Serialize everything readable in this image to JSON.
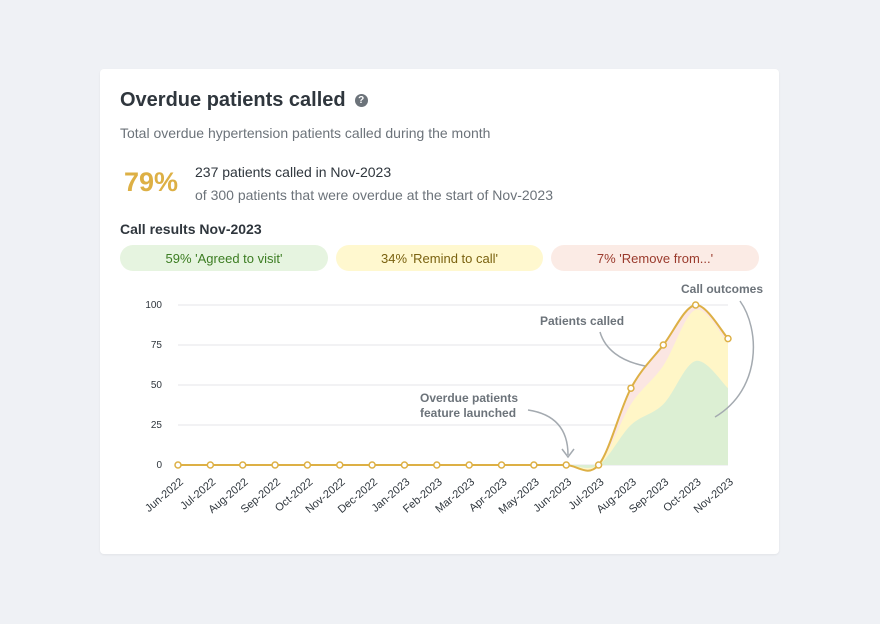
{
  "card": {
    "title": "Overdue patients called",
    "help_icon": "?",
    "subtitle": "Total overdue hypertension patients called during the month",
    "percent": "79%",
    "stat_main": "237 patients called in Nov-2023",
    "stat_sub": "of 300 patients that were overdue at the start of Nov-2023",
    "results_title": "Call results Nov-2023",
    "pills": {
      "agreed": "59% 'Agreed to visit'",
      "remind": "34% 'Remind to call'",
      "remove": "7% 'Remove from...'"
    }
  },
  "colors": {
    "called_line": "#ddb045",
    "agreed_fill": "#dcefd3",
    "remind_fill": "#fff6c7",
    "remove_fill": "#fbe6e2",
    "grid": "#e4e6e9"
  },
  "chart_data": {
    "type": "area",
    "categories": [
      "Jun-2022",
      "Jul-2022",
      "Aug-2022",
      "Sep-2022",
      "Oct-2022",
      "Nov-2022",
      "Dec-2022",
      "Jan-2023",
      "Feb-2023",
      "Mar-2023",
      "Apr-2023",
      "May-2023",
      "Jun-2023",
      "Jul-2023",
      "Aug-2023",
      "Sep-2023",
      "Oct-2023",
      "Nov-2023"
    ],
    "yticks": [
      0,
      25,
      50,
      75,
      100
    ],
    "ylim": [
      0,
      100
    ],
    "series": [
      {
        "name": "Patients called",
        "kind": "line",
        "values": [
          0,
          0,
          0,
          0,
          0,
          0,
          0,
          0,
          0,
          0,
          0,
          0,
          0,
          0,
          48,
          75,
          100,
          79
        ]
      },
      {
        "kind": "area-agreed",
        "values": [
          0,
          0,
          0,
          0,
          0,
          0,
          0,
          0,
          0,
          0,
          0,
          0,
          0,
          0,
          25,
          38,
          65,
          48
        ]
      },
      {
        "kind": "area-remind",
        "values": [
          0,
          0,
          0,
          0,
          0,
          0,
          0,
          0,
          0,
          0,
          0,
          0,
          0,
          0,
          38,
          62,
          97,
          76
        ]
      }
    ],
    "annotations": {
      "patients_called": "Patients called",
      "call_outcomes": "Call outcomes",
      "feature_line1": "Overdue patients",
      "feature_line2": "feature launched"
    }
  }
}
